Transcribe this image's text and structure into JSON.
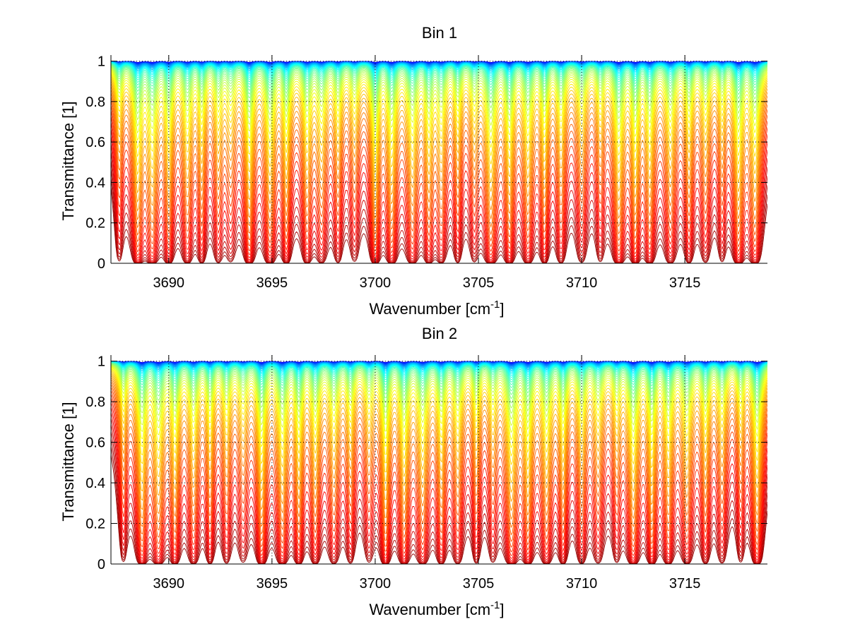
{
  "chart_data": [
    {
      "type": "line",
      "title": "Bin 1",
      "xlabel": "Wavenumber [cm",
      "xlabel_sup": "-1",
      "xlabel_tail": "]",
      "ylabel": "Transmittance [1]",
      "xlim": [
        3687.2,
        3719.0
      ],
      "ylim": [
        0,
        1.03
      ],
      "xticks": [
        3690,
        3695,
        3700,
        3705,
        3710,
        3715
      ],
      "xtick_labels": [
        "3690",
        "3695",
        "3700",
        "3705",
        "3710",
        "3715"
      ],
      "yticks": [
        0,
        0.2,
        0.4,
        0.6,
        0.8,
        1
      ],
      "ytick_labels": [
        "0",
        "0.2",
        "0.4",
        "0.6",
        "0.8",
        "1"
      ],
      "grid": true,
      "colormap": "jet",
      "series_count": 60,
      "absorption_lines": [
        3687.6,
        3688.5,
        3689.2,
        3690.0,
        3690.9,
        3691.6,
        3692.4,
        3693.0,
        3693.9,
        3694.9,
        3695.7,
        3696.7,
        3697.4,
        3698.2,
        3699.0,
        3700.0,
        3700.8,
        3701.8,
        3702.6,
        3703.2,
        3704.0,
        3704.8,
        3705.6,
        3706.5,
        3707.4,
        3708.2,
        3709.0,
        3710.0,
        3710.9,
        3711.8,
        3712.6,
        3713.3,
        3714.3,
        3715.2,
        3716.0,
        3716.8,
        3717.6,
        3718.4
      ]
    },
    {
      "type": "line",
      "title": "Bin 2",
      "xlabel": "Wavenumber [cm",
      "xlabel_sup": "-1",
      "xlabel_tail": "]",
      "ylabel": "Transmittance [1]",
      "xlim": [
        3687.2,
        3719.0
      ],
      "ylim": [
        0,
        1.03
      ],
      "xticks": [
        3690,
        3695,
        3700,
        3705,
        3710,
        3715
      ],
      "xtick_labels": [
        "3690",
        "3695",
        "3700",
        "3705",
        "3710",
        "3715"
      ],
      "yticks": [
        0,
        0.2,
        0.4,
        0.6,
        0.8,
        1
      ],
      "ytick_labels": [
        "0",
        "0.2",
        "0.4",
        "0.6",
        "0.8",
        "1"
      ],
      "grid": true,
      "colormap": "jet",
      "series_count": 60,
      "absorption_lines": [
        3687.8,
        3688.7,
        3689.5,
        3690.3,
        3691.2,
        3692.0,
        3692.8,
        3693.6,
        3694.5,
        3695.5,
        3696.3,
        3697.1,
        3698.0,
        3698.8,
        3699.7,
        3700.5,
        3701.4,
        3702.3,
        3703.2,
        3704.0,
        3704.9,
        3705.7,
        3706.6,
        3707.4,
        3708.3,
        3709.1,
        3710.0,
        3710.8,
        3711.7,
        3712.5,
        3713.4,
        3714.2,
        3715.1,
        3716.0,
        3716.8,
        3717.7,
        3718.5
      ]
    }
  ]
}
